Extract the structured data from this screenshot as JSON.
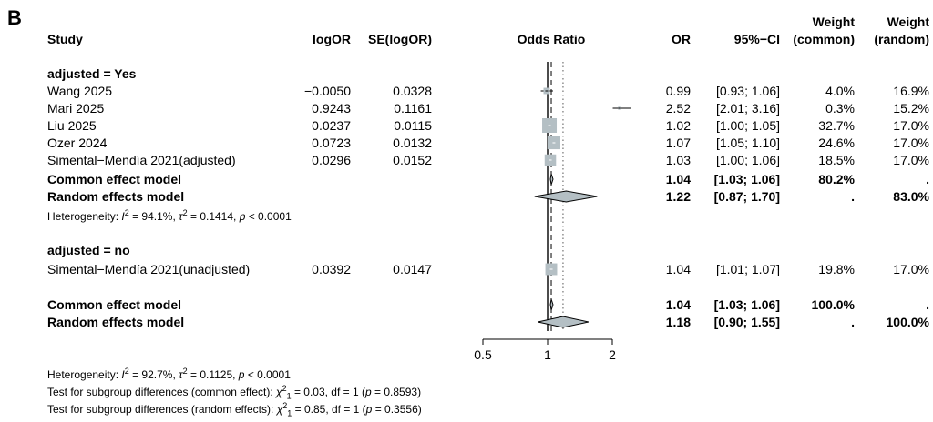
{
  "panel_label": "B",
  "headers": {
    "study": "Study",
    "logor": "logOR",
    "selogor": "SE(logOR)",
    "odds_ratio": "Odds Ratio",
    "or": "OR",
    "ci": "95%−CI",
    "weight_line1": "Weight",
    "weight_common": "(common)",
    "weight_random": "(random)"
  },
  "subgroups": [
    {
      "label": "adjusted = Yes",
      "studies": [
        {
          "name": "Wang 2025",
          "logor": "−0.0050",
          "se": "0.0328",
          "or_text": "0.99",
          "ci_text": "[0.93; 1.06]",
          "w_common": "4.0%",
          "w_random": "16.9%"
        },
        {
          "name": "Mari 2025",
          "logor": "0.9243",
          "se": "0.1161",
          "or_text": "2.52",
          "ci_text": "[2.01; 3.16]",
          "w_common": "0.3%",
          "w_random": "15.2%"
        },
        {
          "name": "Liu 2025",
          "logor": "0.0237",
          "se": "0.0115",
          "or_text": "1.02",
          "ci_text": "[1.00; 1.05]",
          "w_common": "32.7%",
          "w_random": "17.0%"
        },
        {
          "name": "Ozer 2024",
          "logor": "0.0723",
          "se": "0.0132",
          "or_text": "1.07",
          "ci_text": "[1.05; 1.10]",
          "w_common": "24.6%",
          "w_random": "17.0%"
        },
        {
          "name": "Simental−Mendía 2021(adjusted)",
          "logor": "0.0296",
          "se": "0.0152",
          "or_text": "1.03",
          "ci_text": "[1.00; 1.06]",
          "w_common": "18.5%",
          "w_random": "17.0%"
        }
      ],
      "common": {
        "label": "Common effect model",
        "or_text": "1.04",
        "ci_text": "[1.03; 1.06]",
        "w_common": "80.2%",
        "w_random": "."
      },
      "random": {
        "label": "Random effects model",
        "or_text": "1.22",
        "ci_text": "[0.87; 1.70]",
        "w_common": ".",
        "w_random": "83.0%"
      },
      "heterogeneity": {
        "prefix": "Heterogeneity: ",
        "i2_sym": "I",
        "i2_sup": "2",
        "i2_val": " = 94.1%,  ",
        "tau_sym": "τ",
        "tau_sup": "2",
        "tau_val": " = 0.1414, ",
        "p_sym": "p",
        "p_val": " < 0.0001"
      }
    },
    {
      "label": "adjusted = no",
      "studies": [
        {
          "name": "Simental−Mendía 2021(unadjusted)",
          "logor": "0.0392",
          "se": "0.0147",
          "or_text": "1.04",
          "ci_text": "[1.01; 1.07]",
          "w_common": "19.8%",
          "w_random": "17.0%"
        }
      ]
    }
  ],
  "overall": {
    "common": {
      "label": "Common effect model",
      "or_text": "1.04",
      "ci_text": "[1.03; 1.06]",
      "w_common": "100.0%",
      "w_random": "."
    },
    "random": {
      "label": "Random effects model",
      "or_text": "1.18",
      "ci_text": "[0.90; 1.55]",
      "w_common": ".",
      "w_random": "100.0%"
    }
  },
  "footer": {
    "het": {
      "prefix": "Heterogeneity: ",
      "i2_sym": "I",
      "i2_sup": "2",
      "i2_val": " = 92.7%,  ",
      "tau_sym": "τ",
      "tau_sup": "2",
      "tau_val": " = 0.1125, ",
      "p_sym": "p",
      "p_val": " < 0.0001"
    },
    "test_common": {
      "prefix": "Test for subgroup differences (common effect):  ",
      "chi_sym": "χ",
      "chi_sup": "2",
      "chi_sub": "1",
      "rest": " = 0.03, df = 1 (",
      "p_sym": "p",
      "p_val": " = 0.8593)"
    },
    "test_random": {
      "prefix": "Test for subgroup differences (random effects):  ",
      "chi_sym": "χ",
      "chi_sup": "2",
      "chi_sub": "1",
      "rest": " = 0.85, df = 1 (",
      "p_sym": "p",
      "p_val": " = 0.3556)"
    }
  },
  "chart_data": {
    "type": "forest",
    "x_scale": "log",
    "xlim": [
      0.5,
      2
    ],
    "ticks": [
      0.5,
      1,
      2
    ],
    "tick_labels": [
      "0.5",
      "1",
      "2"
    ],
    "reference_line": 1,
    "common_line": 1.04,
    "random_line": 1.18,
    "studies": [
      {
        "or": 0.99,
        "lo": 0.93,
        "hi": 1.06,
        "w_common": 4.0
      },
      {
        "or": 2.52,
        "lo": 2.01,
        "hi": 3.16,
        "w_common": 0.3
      },
      {
        "or": 1.02,
        "lo": 1.0,
        "hi": 1.05,
        "w_common": 32.7
      },
      {
        "or": 1.07,
        "lo": 1.05,
        "hi": 1.1,
        "w_common": 24.6
      },
      {
        "or": 1.03,
        "lo": 1.0,
        "hi": 1.06,
        "w_common": 18.5
      },
      {
        "or": 1.04,
        "lo": 1.01,
        "hi": 1.07,
        "w_common": 19.8
      }
    ],
    "diamonds": [
      {
        "model": "common",
        "or": 1.04,
        "lo": 1.03,
        "hi": 1.06
      },
      {
        "model": "random",
        "or": 1.22,
        "lo": 0.87,
        "hi": 1.7
      },
      {
        "model": "common",
        "or": 1.04,
        "lo": 1.03,
        "hi": 1.06
      },
      {
        "model": "random",
        "or": 1.18,
        "lo": 0.9,
        "hi": 1.55
      }
    ],
    "colors": {
      "square": "#b4bfc4",
      "diamond": "#b4bfc4",
      "line": "#000000"
    }
  }
}
